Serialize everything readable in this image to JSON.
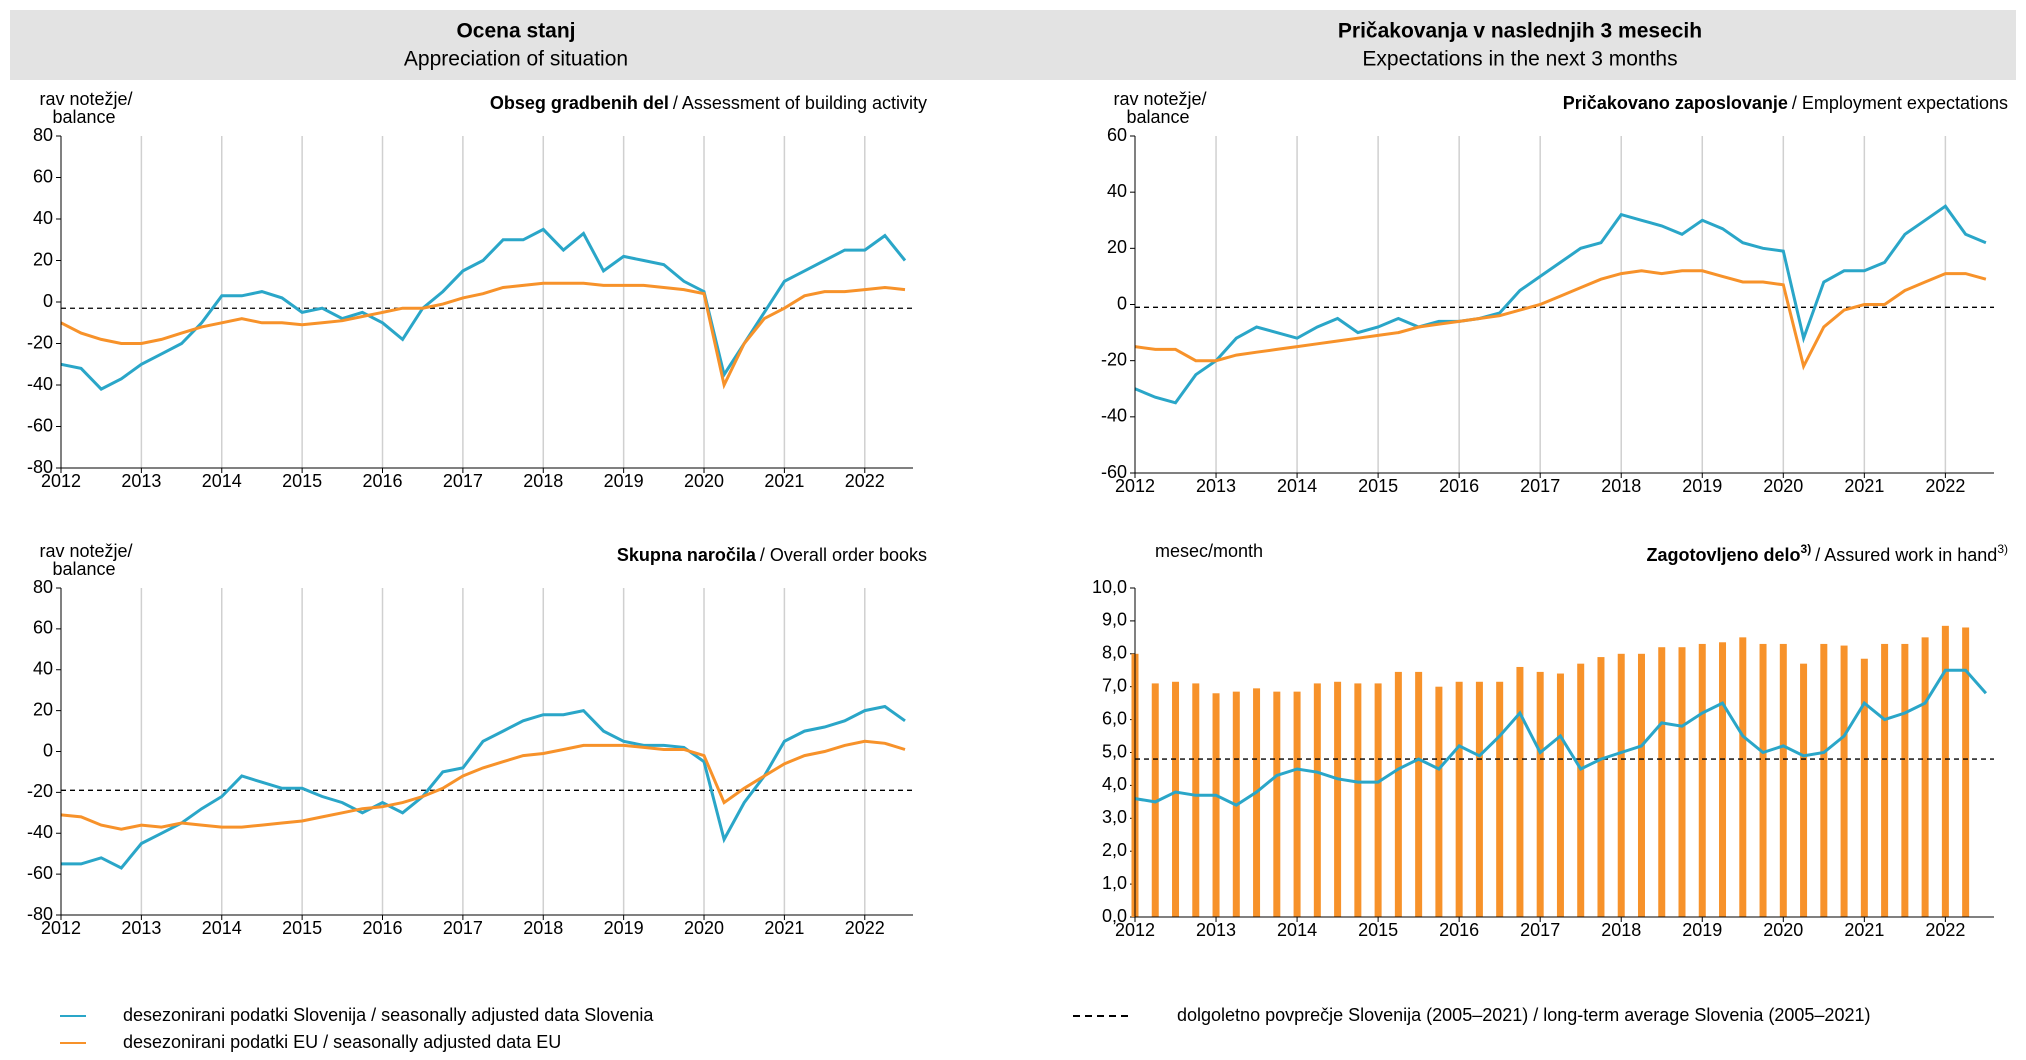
{
  "header": {
    "left_title": "Ocena stanj",
    "left_subtitle": "Appreciation of situation",
    "right_title": "Pričakovanja v naslednjih 3 mesecih",
    "right_subtitle": "Expectations in the next 3 months"
  },
  "chart_data": [
    {
      "type": "line",
      "title": "Obseg gradbenih del",
      "subtitle": "/ Assessment of building activity",
      "ylabel": [
        "rav notežje/",
        "balance"
      ],
      "x": [
        2012,
        2012.25,
        2012.5,
        2012.75,
        2013,
        2013.25,
        2013.5,
        2013.75,
        2014,
        2014.25,
        2014.5,
        2014.75,
        2015,
        2015.25,
        2015.5,
        2015.75,
        2016,
        2016.25,
        2016.5,
        2016.75,
        2017,
        2017.25,
        2017.5,
        2017.75,
        2018,
        2018.25,
        2018.5,
        2018.75,
        2019,
        2019.25,
        2019.5,
        2019.75,
        2020,
        2020.25,
        2020.5,
        2020.75,
        2021,
        2021.25,
        2021.5,
        2021.75,
        2022,
        2022.25,
        2022.5
      ],
      "series": [
        {
          "name": "desezonirani podatki Slovenija / seasonally adjusted data Slovenia",
          "color": "#2aa6c8",
          "values": [
            -30,
            -32,
            -42,
            -37,
            -30,
            -25,
            -20,
            -10,
            3,
            3,
            5,
            2,
            -5,
            -3,
            -8,
            -5,
            -10,
            -18,
            -3,
            5,
            15,
            20,
            30,
            30,
            35,
            25,
            33,
            15,
            22,
            20,
            18,
            10,
            5,
            -35,
            -20,
            -5,
            10,
            15,
            20,
            25,
            25,
            32,
            20
          ]
        },
        {
          "name": "desezonirani podatki EU / seasonally adjusted data EU",
          "color": "#f7922a",
          "values": [
            -10,
            -15,
            -18,
            -20,
            -20,
            -18,
            -15,
            -12,
            -10,
            -8,
            -10,
            -10,
            -11,
            -10,
            -9,
            -7,
            -5,
            -3,
            -3,
            -1,
            2,
            4,
            7,
            8,
            9,
            9,
            9,
            8,
            8,
            8,
            7,
            6,
            4,
            -40,
            -20,
            -8,
            -3,
            3,
            5,
            5,
            6,
            7,
            6
          ]
        }
      ],
      "reference": {
        "name": "dolgoletno povprečje Slovenija (2005–2021) / long-term average Slovenia (2005–2021)",
        "value": -3
      },
      "xlim": [
        2012,
        2022.6
      ],
      "xticks": [
        2012,
        2013,
        2014,
        2015,
        2016,
        2017,
        2018,
        2019,
        2020,
        2021,
        2022
      ],
      "ylim": [
        -80,
        80
      ],
      "yticks": [
        -80,
        -60,
        -40,
        -20,
        0,
        20,
        40,
        60,
        80
      ],
      "grid": true
    },
    {
      "type": "line",
      "title": "Skupna naročila",
      "subtitle": "/ Overall order books",
      "ylabel": [
        "rav notežje/",
        "balance"
      ],
      "x": [
        2012,
        2012.25,
        2012.5,
        2012.75,
        2013,
        2013.25,
        2013.5,
        2013.75,
        2014,
        2014.25,
        2014.5,
        2014.75,
        2015,
        2015.25,
        2015.5,
        2015.75,
        2016,
        2016.25,
        2016.5,
        2016.75,
        2017,
        2017.25,
        2017.5,
        2017.75,
        2018,
        2018.25,
        2018.5,
        2018.75,
        2019,
        2019.25,
        2019.5,
        2019.75,
        2020,
        2020.25,
        2020.5,
        2020.75,
        2021,
        2021.25,
        2021.5,
        2021.75,
        2022,
        2022.25,
        2022.5
      ],
      "series": [
        {
          "color": "#2aa6c8",
          "values": [
            -55,
            -55,
            -52,
            -57,
            -45,
            -40,
            -35,
            -28,
            -22,
            -12,
            -15,
            -18,
            -18,
            -22,
            -25,
            -30,
            -25,
            -30,
            -22,
            -10,
            -8,
            5,
            10,
            15,
            18,
            18,
            20,
            10,
            5,
            3,
            3,
            2,
            -5,
            -43,
            -25,
            -12,
            5,
            10,
            12,
            15,
            20,
            22,
            15
          ]
        },
        {
          "color": "#f7922a",
          "values": [
            -31,
            -32,
            -36,
            -38,
            -36,
            -37,
            -35,
            -36,
            -37,
            -37,
            -36,
            -35,
            -34,
            -32,
            -30,
            -28,
            -27,
            -25,
            -22,
            -18,
            -12,
            -8,
            -5,
            -2,
            -1,
            1,
            3,
            3,
            3,
            2,
            1,
            1,
            -2,
            -25,
            -18,
            -12,
            -6,
            -2,
            0,
            3,
            5,
            4,
            1
          ]
        }
      ],
      "reference": {
        "value": -19
      },
      "xlim": [
        2012,
        2022.6
      ],
      "xticks": [
        2012,
        2013,
        2014,
        2015,
        2016,
        2017,
        2018,
        2019,
        2020,
        2021,
        2022
      ],
      "ylim": [
        -80,
        80
      ],
      "yticks": [
        -80,
        -60,
        -40,
        -20,
        0,
        20,
        40,
        60,
        80
      ],
      "grid": true
    },
    {
      "type": "line",
      "title": "Pričakovano zaposlovanje",
      "subtitle": "/ Employment  expectations",
      "ylabel": [
        "rav notežje/",
        "balance"
      ],
      "x": [
        2012,
        2012.25,
        2012.5,
        2012.75,
        2013,
        2013.25,
        2013.5,
        2013.75,
        2014,
        2014.25,
        2014.5,
        2014.75,
        2015,
        2015.25,
        2015.5,
        2015.75,
        2016,
        2016.25,
        2016.5,
        2016.75,
        2017,
        2017.25,
        2017.5,
        2017.75,
        2018,
        2018.25,
        2018.5,
        2018.75,
        2019,
        2019.25,
        2019.5,
        2019.75,
        2020,
        2020.25,
        2020.5,
        2020.75,
        2021,
        2021.25,
        2021.5,
        2021.75,
        2022,
        2022.25,
        2022.5
      ],
      "series": [
        {
          "color": "#2aa6c8",
          "values": [
            -30,
            -33,
            -35,
            -25,
            -20,
            -12,
            -8,
            -10,
            -12,
            -8,
            -5,
            -10,
            -8,
            -5,
            -8,
            -6,
            -6,
            -5,
            -3,
            5,
            10,
            15,
            20,
            22,
            32,
            30,
            28,
            25,
            30,
            27,
            22,
            20,
            19,
            -12,
            8,
            12,
            12,
            15,
            25,
            30,
            35,
            25,
            22
          ]
        },
        {
          "color": "#f7922a",
          "values": [
            -15,
            -16,
            -16,
            -20,
            -20,
            -18,
            -17,
            -16,
            -15,
            -14,
            -13,
            -12,
            -11,
            -10,
            -8,
            -7,
            -6,
            -5,
            -4,
            -2,
            0,
            3,
            6,
            9,
            11,
            12,
            11,
            12,
            12,
            10,
            8,
            8,
            7,
            -22,
            -8,
            -2,
            0,
            0,
            5,
            8,
            11,
            11,
            9
          ]
        }
      ],
      "reference": {
        "value": -1
      },
      "xlim": [
        2012,
        2022.6
      ],
      "xticks": [
        2012,
        2013,
        2014,
        2015,
        2016,
        2017,
        2018,
        2019,
        2020,
        2021,
        2022
      ],
      "ylim": [
        -60,
        60
      ],
      "yticks": [
        -60,
        -40,
        -20,
        0,
        20,
        40,
        60
      ],
      "grid": true
    },
    {
      "type": "bar_line",
      "title": "Zagotovljeno delo",
      "title_note": "3)",
      "subtitle": "/ Assured work in hand",
      "subtitle_note": "3)",
      "ylabel": [
        "mesec/month"
      ],
      "x": [
        2012,
        2012.25,
        2012.5,
        2012.75,
        2013,
        2013.25,
        2013.5,
        2013.75,
        2014,
        2014.25,
        2014.5,
        2014.75,
        2015,
        2015.25,
        2015.5,
        2015.75,
        2016,
        2016.25,
        2016.5,
        2016.75,
        2017,
        2017.25,
        2017.5,
        2017.75,
        2018,
        2018.25,
        2018.5,
        2018.75,
        2019,
        2019.25,
        2019.5,
        2019.75,
        2020,
        2020.25,
        2020.5,
        2020.75,
        2021,
        2021.25,
        2021.5,
        2021.75,
        2022,
        2022.25,
        2022.5
      ],
      "series": [
        {
          "kind": "bar",
          "color": "#f7922a",
          "x": [
            2012,
            2012.25,
            2012.5,
            2012.75,
            2013,
            2013.25,
            2013.5,
            2013.75,
            2014,
            2014.25,
            2014.5,
            2014.75,
            2015,
            2015.25,
            2015.5,
            2015.75,
            2016,
            2016.25,
            2016.5,
            2016.75,
            2017,
            2017.25,
            2017.5,
            2017.75,
            2018,
            2018.25,
            2018.5,
            2018.75,
            2019,
            2019.25,
            2019.5,
            2019.75,
            2020,
            2020.25,
            2020.5,
            2020.75,
            2021,
            2021.25,
            2021.5,
            2021.75,
            2022,
            2022.25
          ],
          "values": [
            8.0,
            7.1,
            7.15,
            7.1,
            6.8,
            6.85,
            6.95,
            6.85,
            6.85,
            7.1,
            7.15,
            7.1,
            7.1,
            7.45,
            7.45,
            7.0,
            7.15,
            7.15,
            7.15,
            7.6,
            7.45,
            7.4,
            7.7,
            7.9,
            8.0,
            8.0,
            8.2,
            8.2,
            8.3,
            8.35,
            8.5,
            8.3,
            8.3,
            7.7,
            8.3,
            8.25,
            7.85,
            8.3,
            8.3,
            8.5,
            8.85,
            8.8
          ]
        },
        {
          "kind": "line",
          "color": "#2aa6c8",
          "values": [
            3.6,
            3.5,
            3.8,
            3.7,
            3.7,
            3.4,
            3.8,
            4.3,
            4.5,
            4.4,
            4.2,
            4.1,
            4.1,
            4.5,
            4.8,
            4.5,
            5.2,
            4.9,
            5.5,
            6.2,
            5.0,
            5.5,
            4.5,
            4.8,
            5.0,
            5.2,
            5.9,
            5.8,
            6.2,
            6.5,
            5.5,
            5.0,
            5.2,
            4.9,
            5.0,
            5.5,
            6.5,
            6.0,
            6.2,
            6.5,
            7.5,
            7.5,
            6.8
          ]
        }
      ],
      "reference": {
        "value": 4.8
      },
      "xlim": [
        2012,
        2022.6
      ],
      "xticks": [
        2012,
        2013,
        2014,
        2015,
        2016,
        2017,
        2018,
        2019,
        2020,
        2021,
        2022
      ],
      "ylim": [
        0,
        10
      ],
      "yticks": [
        {
          "value": 0,
          "label": "0,0"
        },
        {
          "value": 1,
          "label": "1,0"
        },
        {
          "value": 2,
          "label": "2,0"
        },
        {
          "value": 3,
          "label": "3,0"
        },
        {
          "value": 4,
          "label": "4,0"
        },
        {
          "value": 5,
          "label": "5,0"
        },
        {
          "value": 6,
          "label": "6,0"
        },
        {
          "value": 7,
          "label": "7,0"
        },
        {
          "value": 8,
          "label": "8,0"
        },
        {
          "value": 9,
          "label": "9,0"
        },
        {
          "value": 10,
          "label": "10,0"
        }
      ],
      "grid": false
    }
  ]
}
